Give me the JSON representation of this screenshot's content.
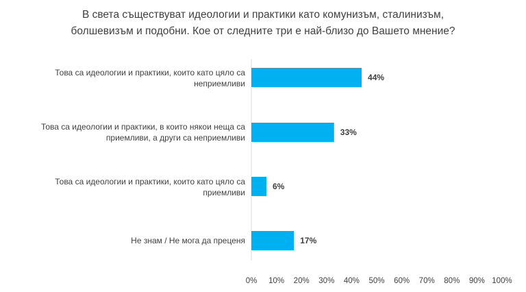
{
  "chart_data": {
    "type": "bar",
    "orientation": "horizontal",
    "title_lines": [
      "В света съществуват идеологии и практики като комунизъм, сталинизъм,",
      "болшевизъм и подобни. Кое от следните три е най-близо до Вашето мнение?"
    ],
    "categories": [
      {
        "lines": [
          "Това са идеологии  и практики, които като цяло са",
          "неприемливи"
        ],
        "value": 44,
        "value_label": "44%"
      },
      {
        "lines": [
          "Това са идеологии  и практики, в които някои неща са",
          "приемливи,  а други са неприемливи"
        ],
        "value": 33,
        "value_label": "33%"
      },
      {
        "lines": [
          "Това са идеологии  и практики, които като цяло са",
          "приемливи"
        ],
        "value": 6,
        "value_label": "6%"
      },
      {
        "lines": [
          "Не знам / Не мога да преценя"
        ],
        "value": 17,
        "value_label": "17%"
      }
    ],
    "xlim": [
      0,
      100
    ],
    "x_ticks": [
      "0%",
      "10%",
      "20%",
      "30%",
      "40%",
      "50%",
      "60%",
      "70%",
      "80%",
      "90%",
      "100%"
    ],
    "grid": false,
    "bar_color": "#00B0F0"
  }
}
